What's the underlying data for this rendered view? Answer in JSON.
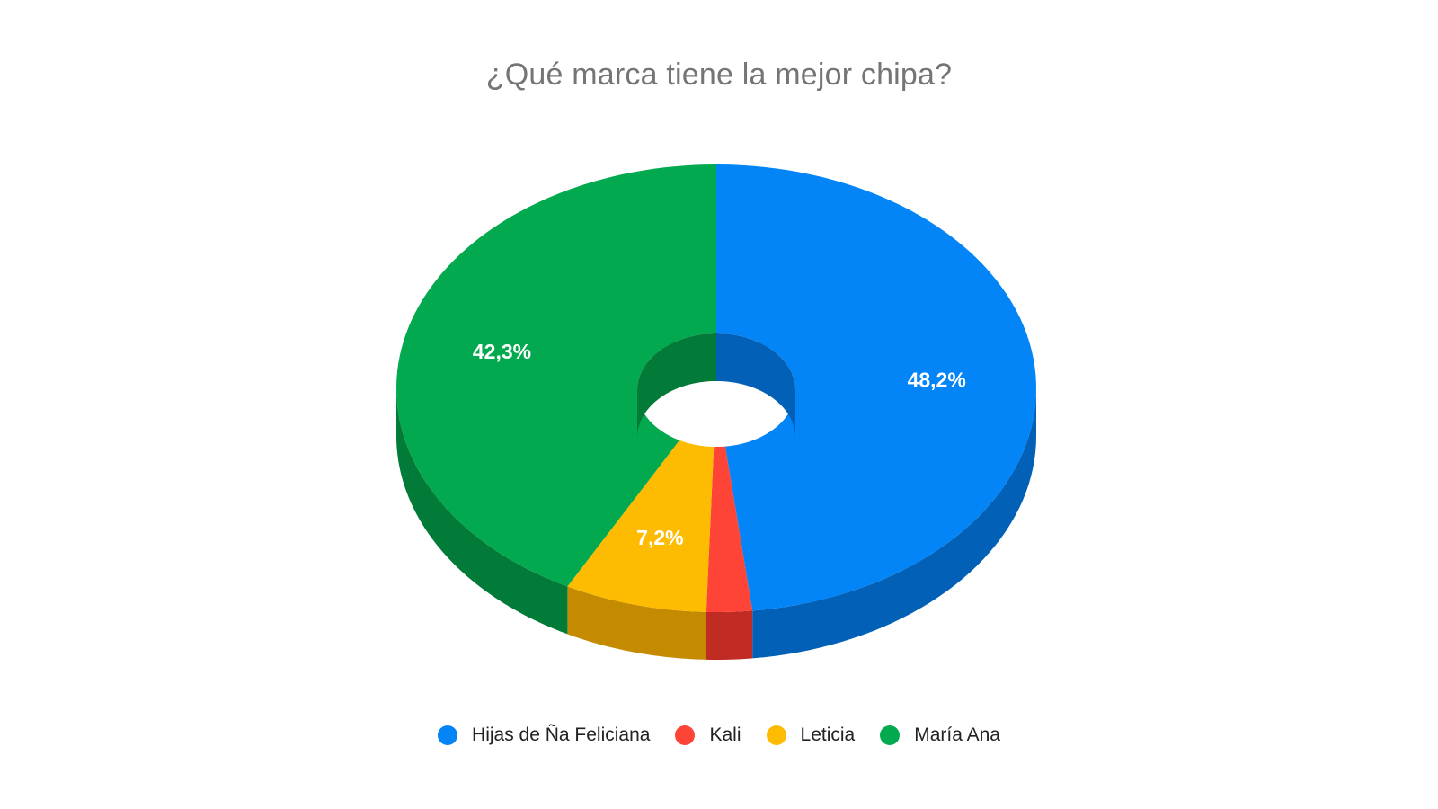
{
  "chart_data": {
    "type": "pie",
    "variant": "3d-donut",
    "title": "¿Qué marca tiene la mejor chipa?",
    "categories": [
      "Hijas de Ña Feliciana",
      "Kali",
      "Leticia",
      "María Ana"
    ],
    "values": [
      48.2,
      2.3,
      7.2,
      42.3
    ],
    "data_labels": [
      "48,2%",
      "",
      "7,2%",
      "42,3%"
    ],
    "colors": [
      "#0385F8",
      "#FD4436",
      "#FDBB02",
      "#03A94E"
    ],
    "side_colors": [
      "#0260B6",
      "#C02B23",
      "#C58B00",
      "#027A38"
    ],
    "legend_position": "bottom"
  }
}
